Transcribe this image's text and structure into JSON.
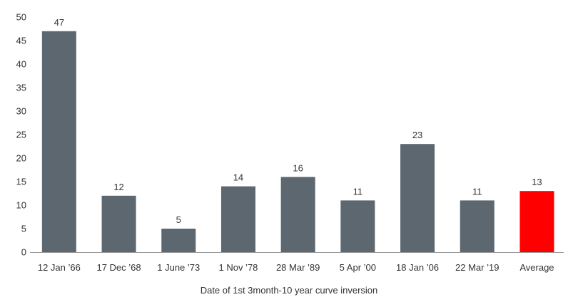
{
  "chart_data": {
    "type": "bar",
    "title": "",
    "xlabel": "Date of 1st 3month-10 year curve inversion",
    "ylabel": "",
    "ylim": [
      0,
      50
    ],
    "yticks": [
      0,
      5,
      10,
      15,
      20,
      25,
      30,
      35,
      40,
      45,
      50
    ],
    "categories": [
      "12 Jan ’66",
      "17 Dec ’68",
      "1 June ’73",
      "1 Nov ’78",
      "28 Mar ’89",
      "5 Apr ’00",
      "18 Jan ’06",
      "22 Mar ’19",
      "Average"
    ],
    "values": [
      47,
      12,
      5,
      14,
      16,
      11,
      23,
      11,
      13
    ],
    "bar_colors": [
      "#5c6770",
      "#5c6770",
      "#5c6770",
      "#5c6770",
      "#5c6770",
      "#5c6770",
      "#5c6770",
      "#5c6770",
      "#ff0000"
    ],
    "grid": false,
    "legend": "none"
  }
}
